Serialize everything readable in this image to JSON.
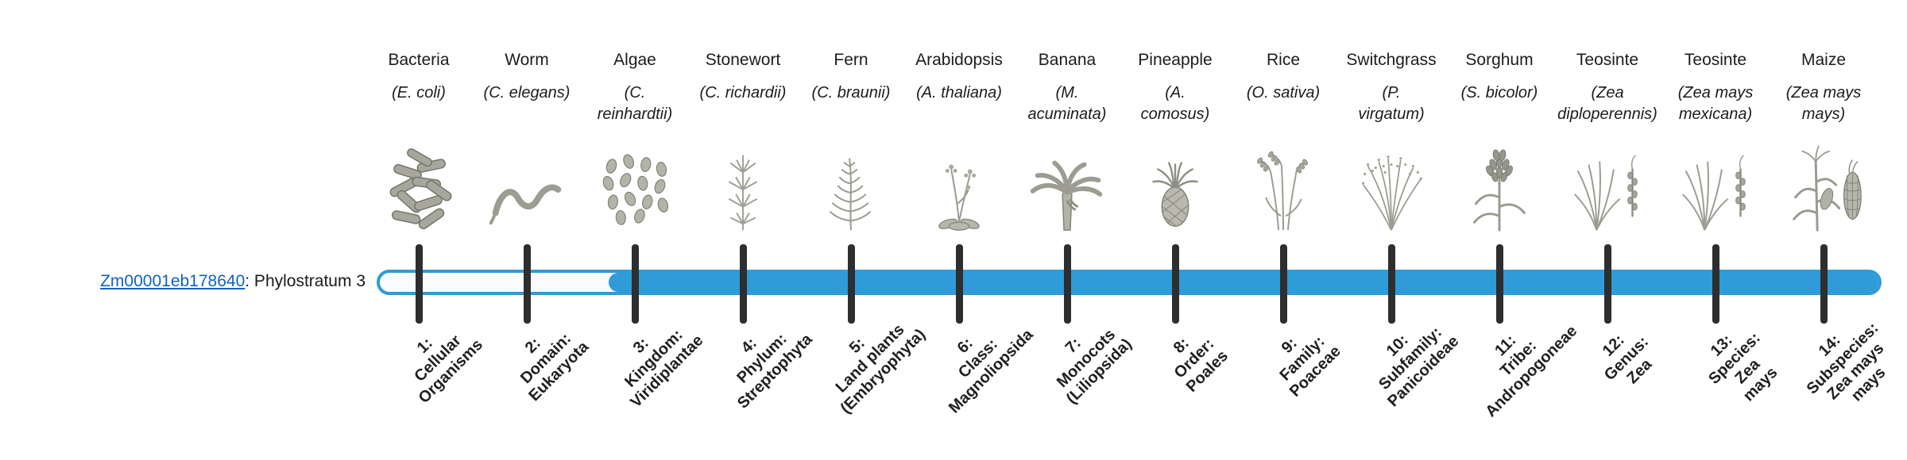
{
  "gene": {
    "id": "Zm00001eb178640",
    "suffix": ": Phylostratum 3",
    "phylostratum": 3
  },
  "timeline": {
    "bar_color": "#2F9BD8",
    "unfilled_color": "#fafbfc",
    "tick_color": "#2e2e2e",
    "filled_from_stratum": 3,
    "total_strata": 14
  },
  "strata": [
    {
      "num": 1,
      "common": "Bacteria",
      "sci": [
        "(E. coli)"
      ],
      "icon": "bacteria-illustration",
      "label": [
        "1:",
        "Cellular",
        "Organisms"
      ]
    },
    {
      "num": 2,
      "common": "Worm",
      "sci": [
        "(C. elegans)"
      ],
      "icon": "worm-illustration",
      "label": [
        "2:",
        "Domain:",
        "Eukaryota"
      ]
    },
    {
      "num": 3,
      "common": "Algae",
      "sci": [
        "(C.",
        "reinhardtii)"
      ],
      "icon": "algae-illustration",
      "label": [
        "3:",
        "Kingdom:",
        "Viridiplantae"
      ]
    },
    {
      "num": 4,
      "common": "Stonewort",
      "sci": [
        "(C. richardii)"
      ],
      "icon": "stonewort-illustration",
      "label": [
        "4:",
        "Phylum:",
        "Streptophyta"
      ]
    },
    {
      "num": 5,
      "common": "Fern",
      "sci": [
        "(C. braunii)"
      ],
      "icon": "fern-illustration",
      "label": [
        "5:",
        "Land plants",
        "(Embryophyta)"
      ]
    },
    {
      "num": 6,
      "common": "Arabidopsis",
      "sci": [
        "(A. thaliana)"
      ],
      "icon": "arabidopsis-illustration",
      "label": [
        "6:",
        "Class:",
        "Magnoliopsida"
      ]
    },
    {
      "num": 7,
      "common": "Banana",
      "sci": [
        "(M.",
        "acuminata)"
      ],
      "icon": "banana-illustration",
      "label": [
        "7:",
        "Monocots",
        "(Liliopsida)"
      ]
    },
    {
      "num": 8,
      "common": "Pineapple",
      "sci": [
        "(A.",
        "comosus)"
      ],
      "icon": "pineapple-illustration",
      "label": [
        "8:",
        "Order:",
        "Poales"
      ]
    },
    {
      "num": 9,
      "common": "Rice",
      "sci": [
        "(O. sativa)"
      ],
      "icon": "rice-illustration",
      "label": [
        "9:",
        "Family:",
        "Poaceae"
      ]
    },
    {
      "num": 10,
      "common": "Switchgrass",
      "sci": [
        "(P.",
        "virgatum)"
      ],
      "icon": "switchgrass-illustration",
      "label": [
        "10:",
        "Subfamily:",
        "Panicoideae"
      ]
    },
    {
      "num": 11,
      "common": "Sorghum",
      "sci": [
        "(S. bicolor)"
      ],
      "icon": "sorghum-illustration",
      "label": [
        "11:",
        "Tribe:",
        "Andropogoneae"
      ]
    },
    {
      "num": 12,
      "common": "Teosinte",
      "sci": [
        "(Zea",
        "diploperennis)"
      ],
      "icon": "teosinte-illustration",
      "label": [
        "12:",
        "Genus:",
        "Zea"
      ]
    },
    {
      "num": 13,
      "common": "Teosinte",
      "sci": [
        "(Zea mays",
        "mexicana)"
      ],
      "icon": "teosinte-illustration",
      "label": [
        "13:",
        "Species:",
        "Zea",
        "mays"
      ]
    },
    {
      "num": 14,
      "common": "Maize",
      "sci": [
        "(Zea mays",
        "mays)"
      ],
      "icon": "maize-illustration",
      "label": [
        "14:",
        "Subspecies:",
        "Zea mays",
        "mays"
      ]
    }
  ]
}
